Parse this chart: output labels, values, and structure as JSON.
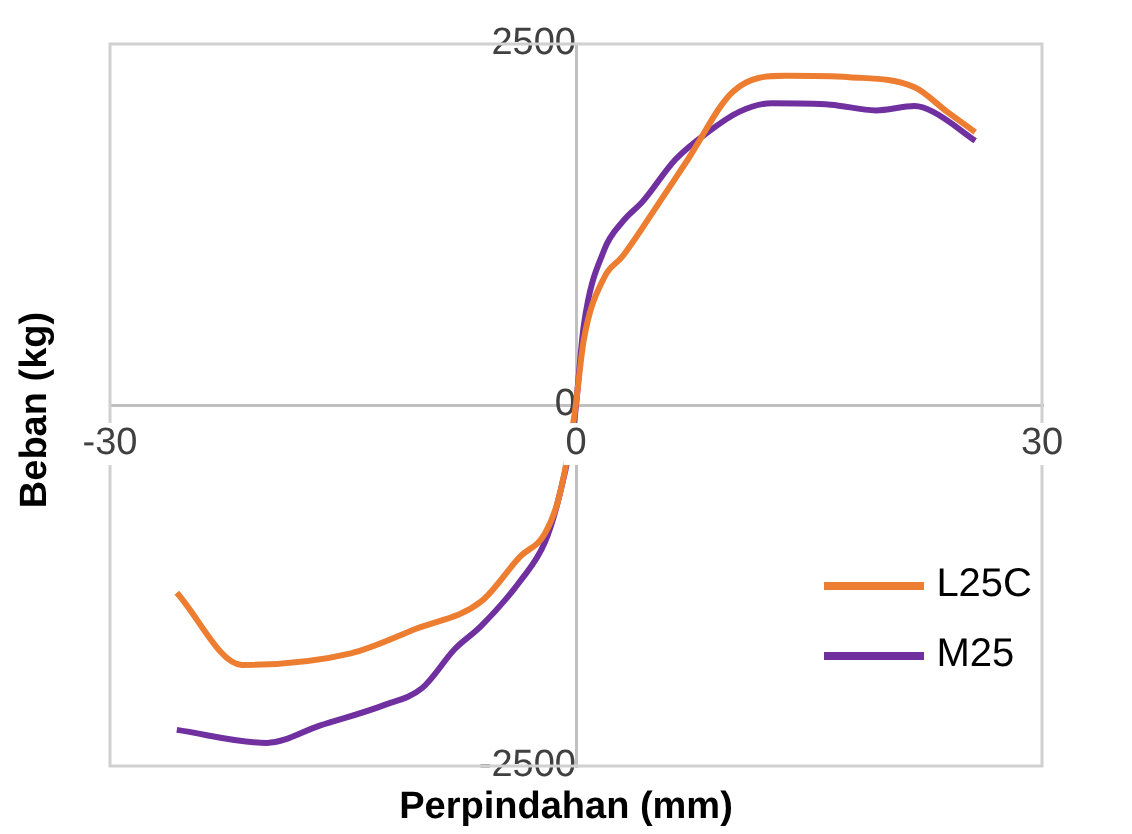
{
  "chart_data": {
    "type": "line",
    "xlabel": "Perpindahan (mm)",
    "ylabel": "Beban (kg)",
    "xlim": [
      -30,
      30
    ],
    "xticks": [
      -30,
      0,
      30
    ],
    "ylim": [
      -2500,
      2500
    ],
    "yticks": [
      -2500,
      0,
      2500
    ],
    "legend": "bottom right",
    "marker": "none",
    "series": [
      {
        "name": "L25C",
        "color": "#ed7d31",
        "x": [
          -25.7,
          -21.5,
          -14.5,
          -10.3,
          -6.1,
          -3.6,
          -2,
          -1.1,
          -0.1,
          0.5,
          1.8,
          3,
          5.1,
          7.2,
          10.1,
          13.5,
          17.6,
          21.8,
          23.9,
          25.7
        ],
        "values": [
          -1300,
          -1800,
          -1720,
          -1550,
          -1360,
          -1050,
          -890,
          -640,
          -70,
          450,
          880,
          1030,
          1360,
          1700,
          2170,
          2280,
          2270,
          2200,
          2030,
          1890
        ]
      },
      {
        "name": "M25",
        "color": "#7030a0",
        "x": [
          -25.7,
          -19.9,
          -16.5,
          -12.4,
          -9.9,
          -7.8,
          -6.1,
          -3.6,
          -2,
          -1.1,
          -0.1,
          0.5,
          1.8,
          3,
          4.3,
          6.4,
          8.5,
          10.5,
          12.6,
          16.4,
          19.3,
          21.8,
          23,
          25.7
        ],
        "values": [
          -2250,
          -2340,
          -2220,
          -2080,
          -1960,
          -1690,
          -1530,
          -1220,
          -950,
          -640,
          -100,
          550,
          1070,
          1270,
          1410,
          1700,
          1890,
          2030,
          2090,
          2080,
          2040,
          2070,
          2030,
          1830
        ]
      }
    ]
  }
}
